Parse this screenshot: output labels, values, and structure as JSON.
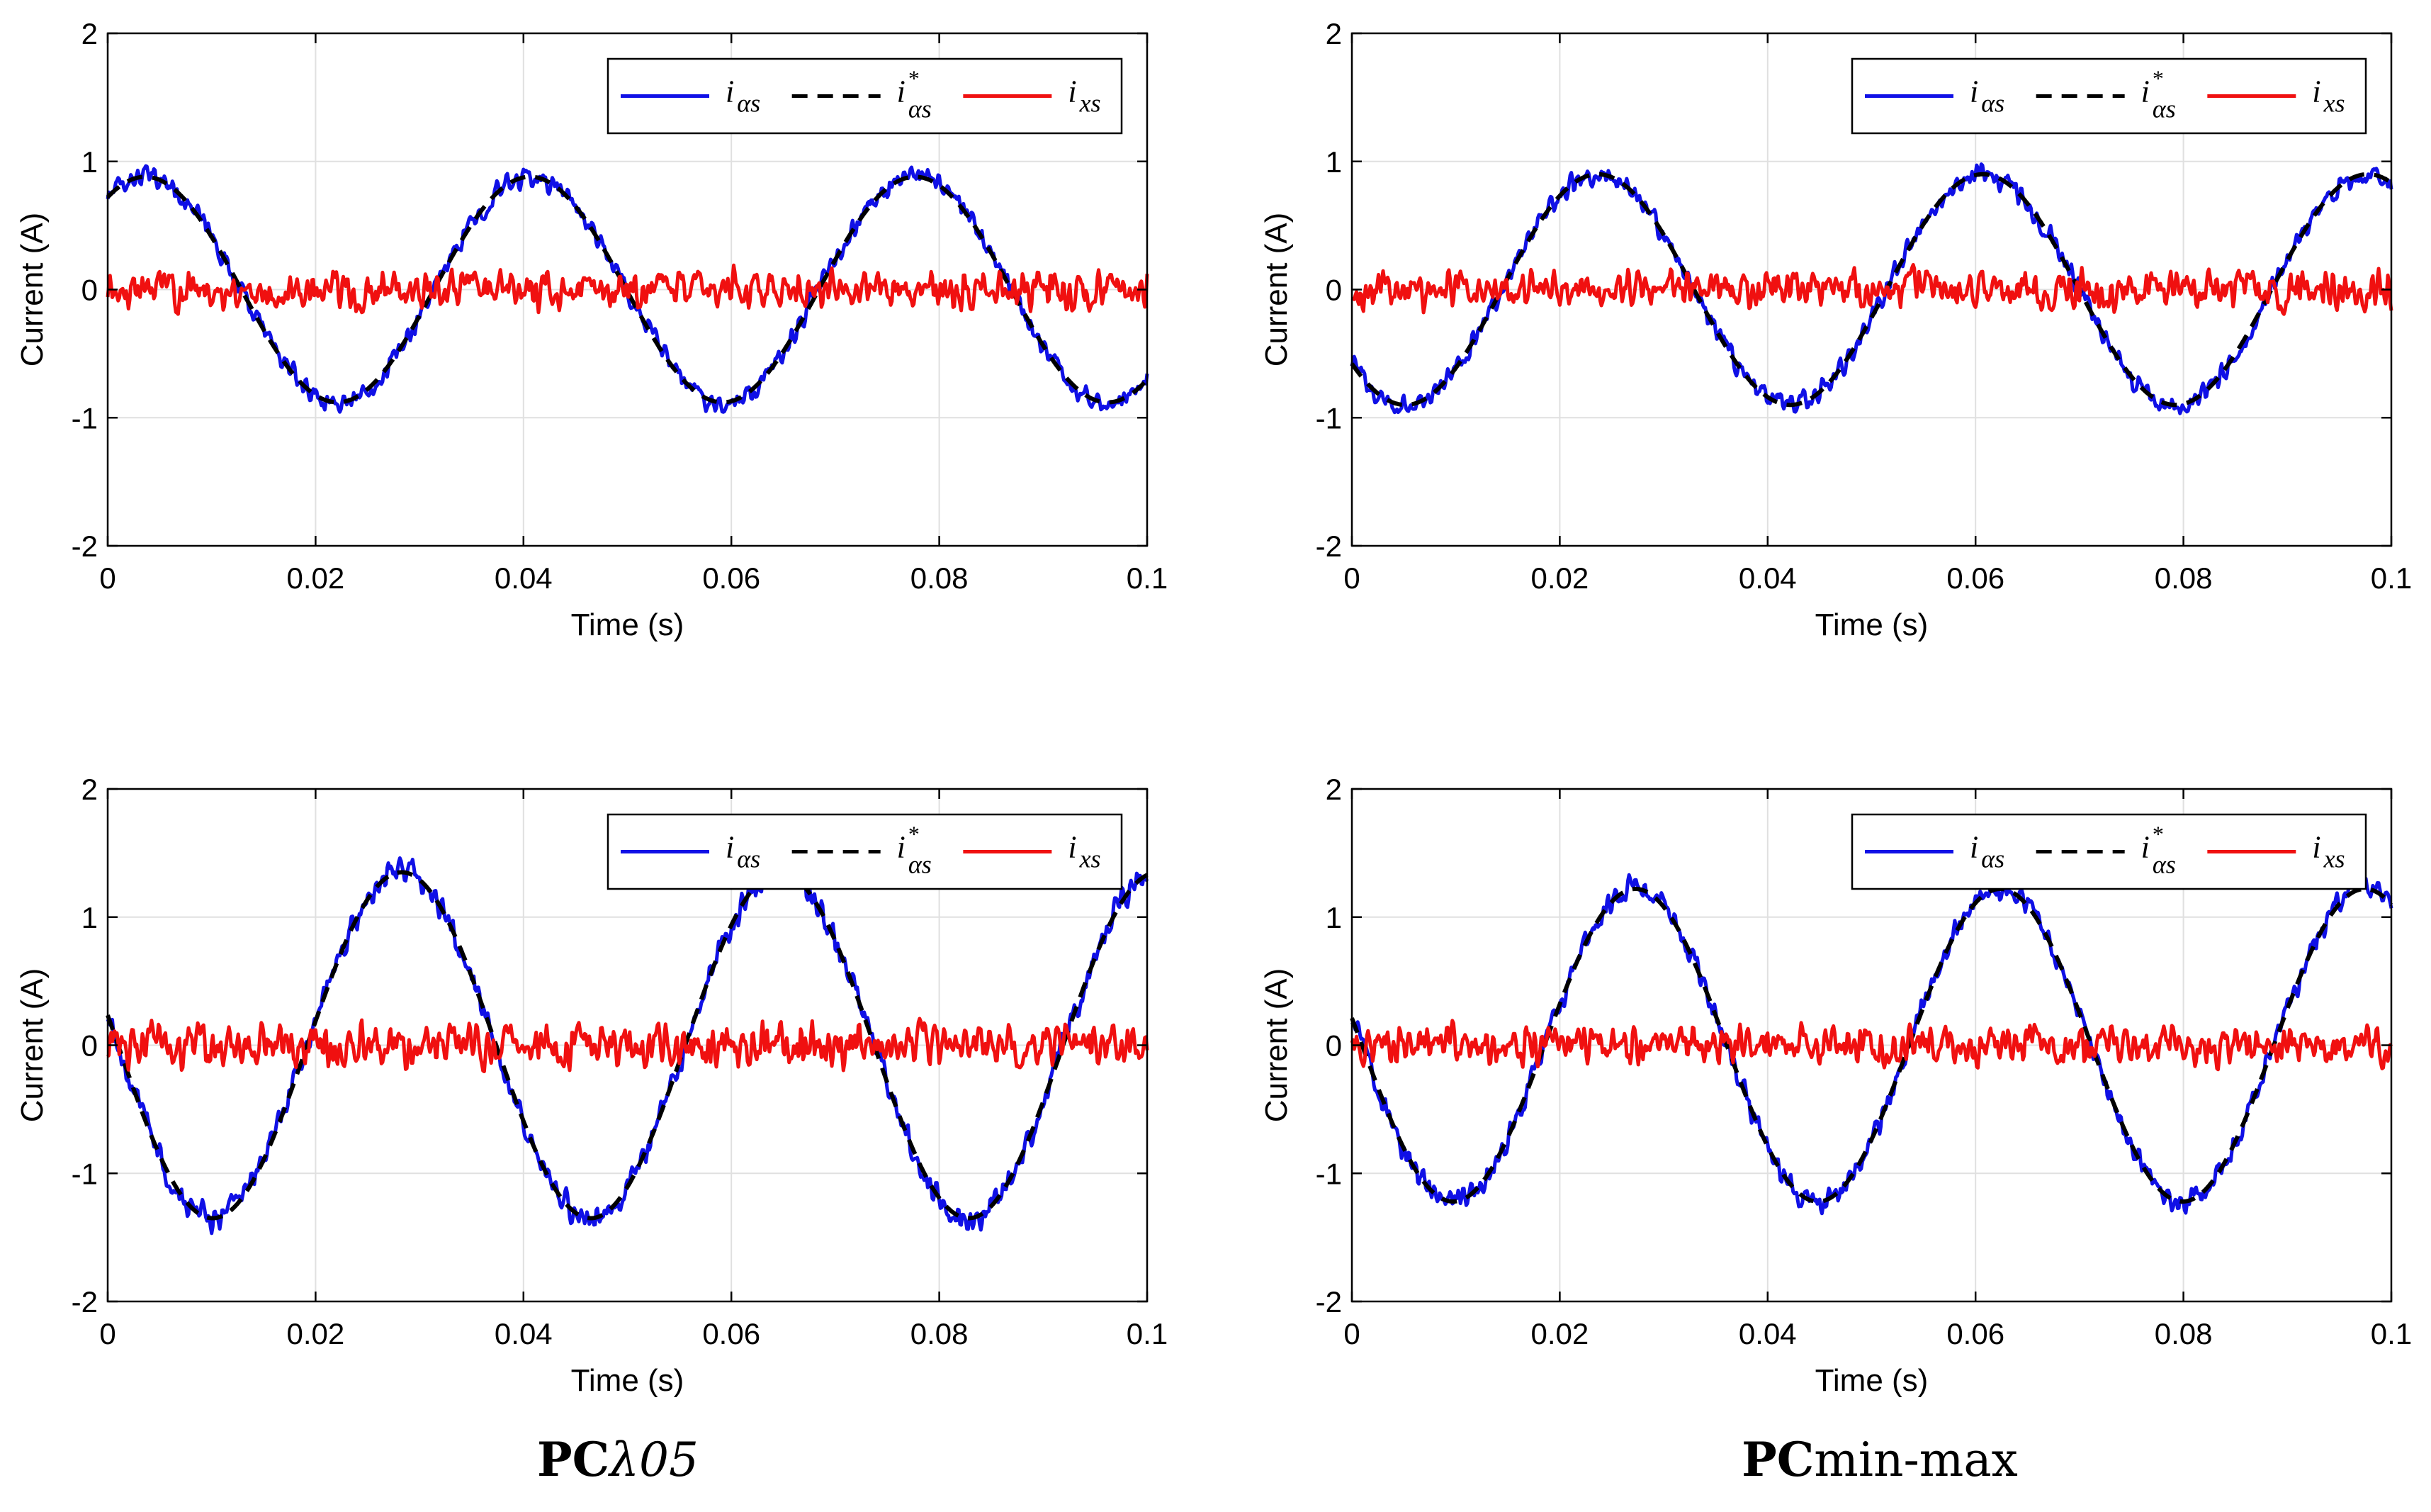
{
  "figure": {
    "captions": [
      {
        "bold": "PC",
        "text": "λ05"
      },
      {
        "bold": "PC",
        "text": "min-max"
      }
    ]
  },
  "colors": {
    "i_alpha": "#1010e6",
    "i_ref": "#000000",
    "i_x": "#f01010",
    "grid": "#e0e0e0"
  },
  "chart_data": [
    {
      "type": "line",
      "panel": "top-left",
      "xlabel": "Time (s)",
      "ylabel": "Current (A)",
      "xlim": [
        0,
        0.1
      ],
      "ylim": [
        -2,
        2
      ],
      "xticks": [
        "0",
        "0.02",
        "0.04",
        "0.06",
        "0.08",
        "0.1"
      ],
      "yticks": [
        "-2",
        "-1",
        "0",
        "1",
        "2"
      ],
      "grid": true,
      "legend_position": "top-right",
      "series": [
        {
          "name": "i_αs",
          "style": "solid",
          "color": "blue",
          "amplitude": 0.88,
          "frequency_hz": 27,
          "phase_deg": 55,
          "noise": 0.07
        },
        {
          "name": "i*_αs",
          "style": "dashed",
          "color": "black",
          "amplitude": 0.88,
          "frequency_hz": 27,
          "phase_deg": 55
        },
        {
          "name": "i_xs",
          "style": "solid",
          "color": "red",
          "amplitude": 0.0,
          "noise": 0.13
        }
      ],
      "legend": [
        {
          "base": "i",
          "sub": "αs",
          "sup": ""
        },
        {
          "base": "i",
          "sub": "αs",
          "sup": "*"
        },
        {
          "base": "i",
          "sub": "xs",
          "sup": ""
        }
      ]
    },
    {
      "type": "line",
      "panel": "top-right",
      "xlabel": "Time (s)",
      "ylabel": "Current (A)",
      "xlim": [
        0,
        0.1
      ],
      "ylim": [
        -2,
        2
      ],
      "xticks": [
        "0",
        "0.02",
        "0.04",
        "0.06",
        "0.08",
        "0.1"
      ],
      "yticks": [
        "-2",
        "-1",
        "0",
        "1",
        "2"
      ],
      "grid": true,
      "legend_position": "top-right",
      "series": [
        {
          "name": "i_αs",
          "style": "solid",
          "color": "blue",
          "amplitude": 0.9,
          "frequency_hz": 27,
          "phase_deg": -140,
          "noise": 0.07
        },
        {
          "name": "i*_αs",
          "style": "dashed",
          "color": "black",
          "amplitude": 0.9,
          "frequency_hz": 27,
          "phase_deg": -140
        },
        {
          "name": "i_xs",
          "style": "solid",
          "color": "red",
          "amplitude": 0.0,
          "noise": 0.13
        }
      ],
      "legend": [
        {
          "base": "i",
          "sub": "αs",
          "sup": ""
        },
        {
          "base": "i",
          "sub": "αs",
          "sup": "*"
        },
        {
          "base": "i",
          "sub": "xs",
          "sup": ""
        }
      ]
    },
    {
      "type": "line",
      "panel": "bottom-left",
      "xlabel": "Time (s)",
      "ylabel": "Current (A)",
      "xlim": [
        0,
        0.1
      ],
      "ylim": [
        -2,
        2
      ],
      "xticks": [
        "0",
        "0.02",
        "0.04",
        "0.06",
        "0.08",
        "0.1"
      ],
      "yticks": [
        "-2",
        "-1",
        "0",
        "1",
        "2"
      ],
      "grid": true,
      "legend_position": "top-right",
      "series": [
        {
          "name": "i_αs",
          "style": "solid",
          "color": "blue",
          "amplitude": 1.35,
          "frequency_hz": 27.5,
          "phase_deg": 170,
          "noise": 0.09
        },
        {
          "name": "i*_αs",
          "style": "dashed",
          "color": "black",
          "amplitude": 1.35,
          "frequency_hz": 27.5,
          "phase_deg": 170
        },
        {
          "name": "i_xs",
          "style": "solid",
          "color": "red",
          "amplitude": 0.0,
          "noise": 0.15
        }
      ],
      "legend": [
        {
          "base": "i",
          "sub": "αs",
          "sup": ""
        },
        {
          "base": "i",
          "sub": "αs",
          "sup": "*"
        },
        {
          "base": "i",
          "sub": "xs",
          "sup": ""
        }
      ]
    },
    {
      "type": "line",
      "panel": "bottom-right",
      "xlabel": "Time (s)",
      "ylabel": "Current (A)",
      "xlim": [
        0,
        0.1
      ],
      "ylim": [
        -2,
        2
      ],
      "xticks": [
        "0",
        "0.02",
        "0.04",
        "0.06",
        "0.08",
        "0.1"
      ],
      "yticks": [
        "-2",
        "-1",
        "0",
        "1",
        "2"
      ],
      "grid": true,
      "legend_position": "top-right",
      "series": [
        {
          "name": "i_αs",
          "style": "solid",
          "color": "blue",
          "amplitude": 1.22,
          "frequency_hz": 28.5,
          "phase_deg": 170,
          "noise": 0.08
        },
        {
          "name": "i*_αs",
          "style": "dashed",
          "color": "black",
          "amplitude": 1.22,
          "frequency_hz": 28.5,
          "phase_deg": 170
        },
        {
          "name": "i_xs",
          "style": "solid",
          "color": "red",
          "amplitude": 0.0,
          "noise": 0.13
        }
      ],
      "legend": [
        {
          "base": "i",
          "sub": "αs",
          "sup": ""
        },
        {
          "base": "i",
          "sub": "αs",
          "sup": "*"
        },
        {
          "base": "i",
          "sub": "xs",
          "sup": ""
        }
      ]
    }
  ]
}
